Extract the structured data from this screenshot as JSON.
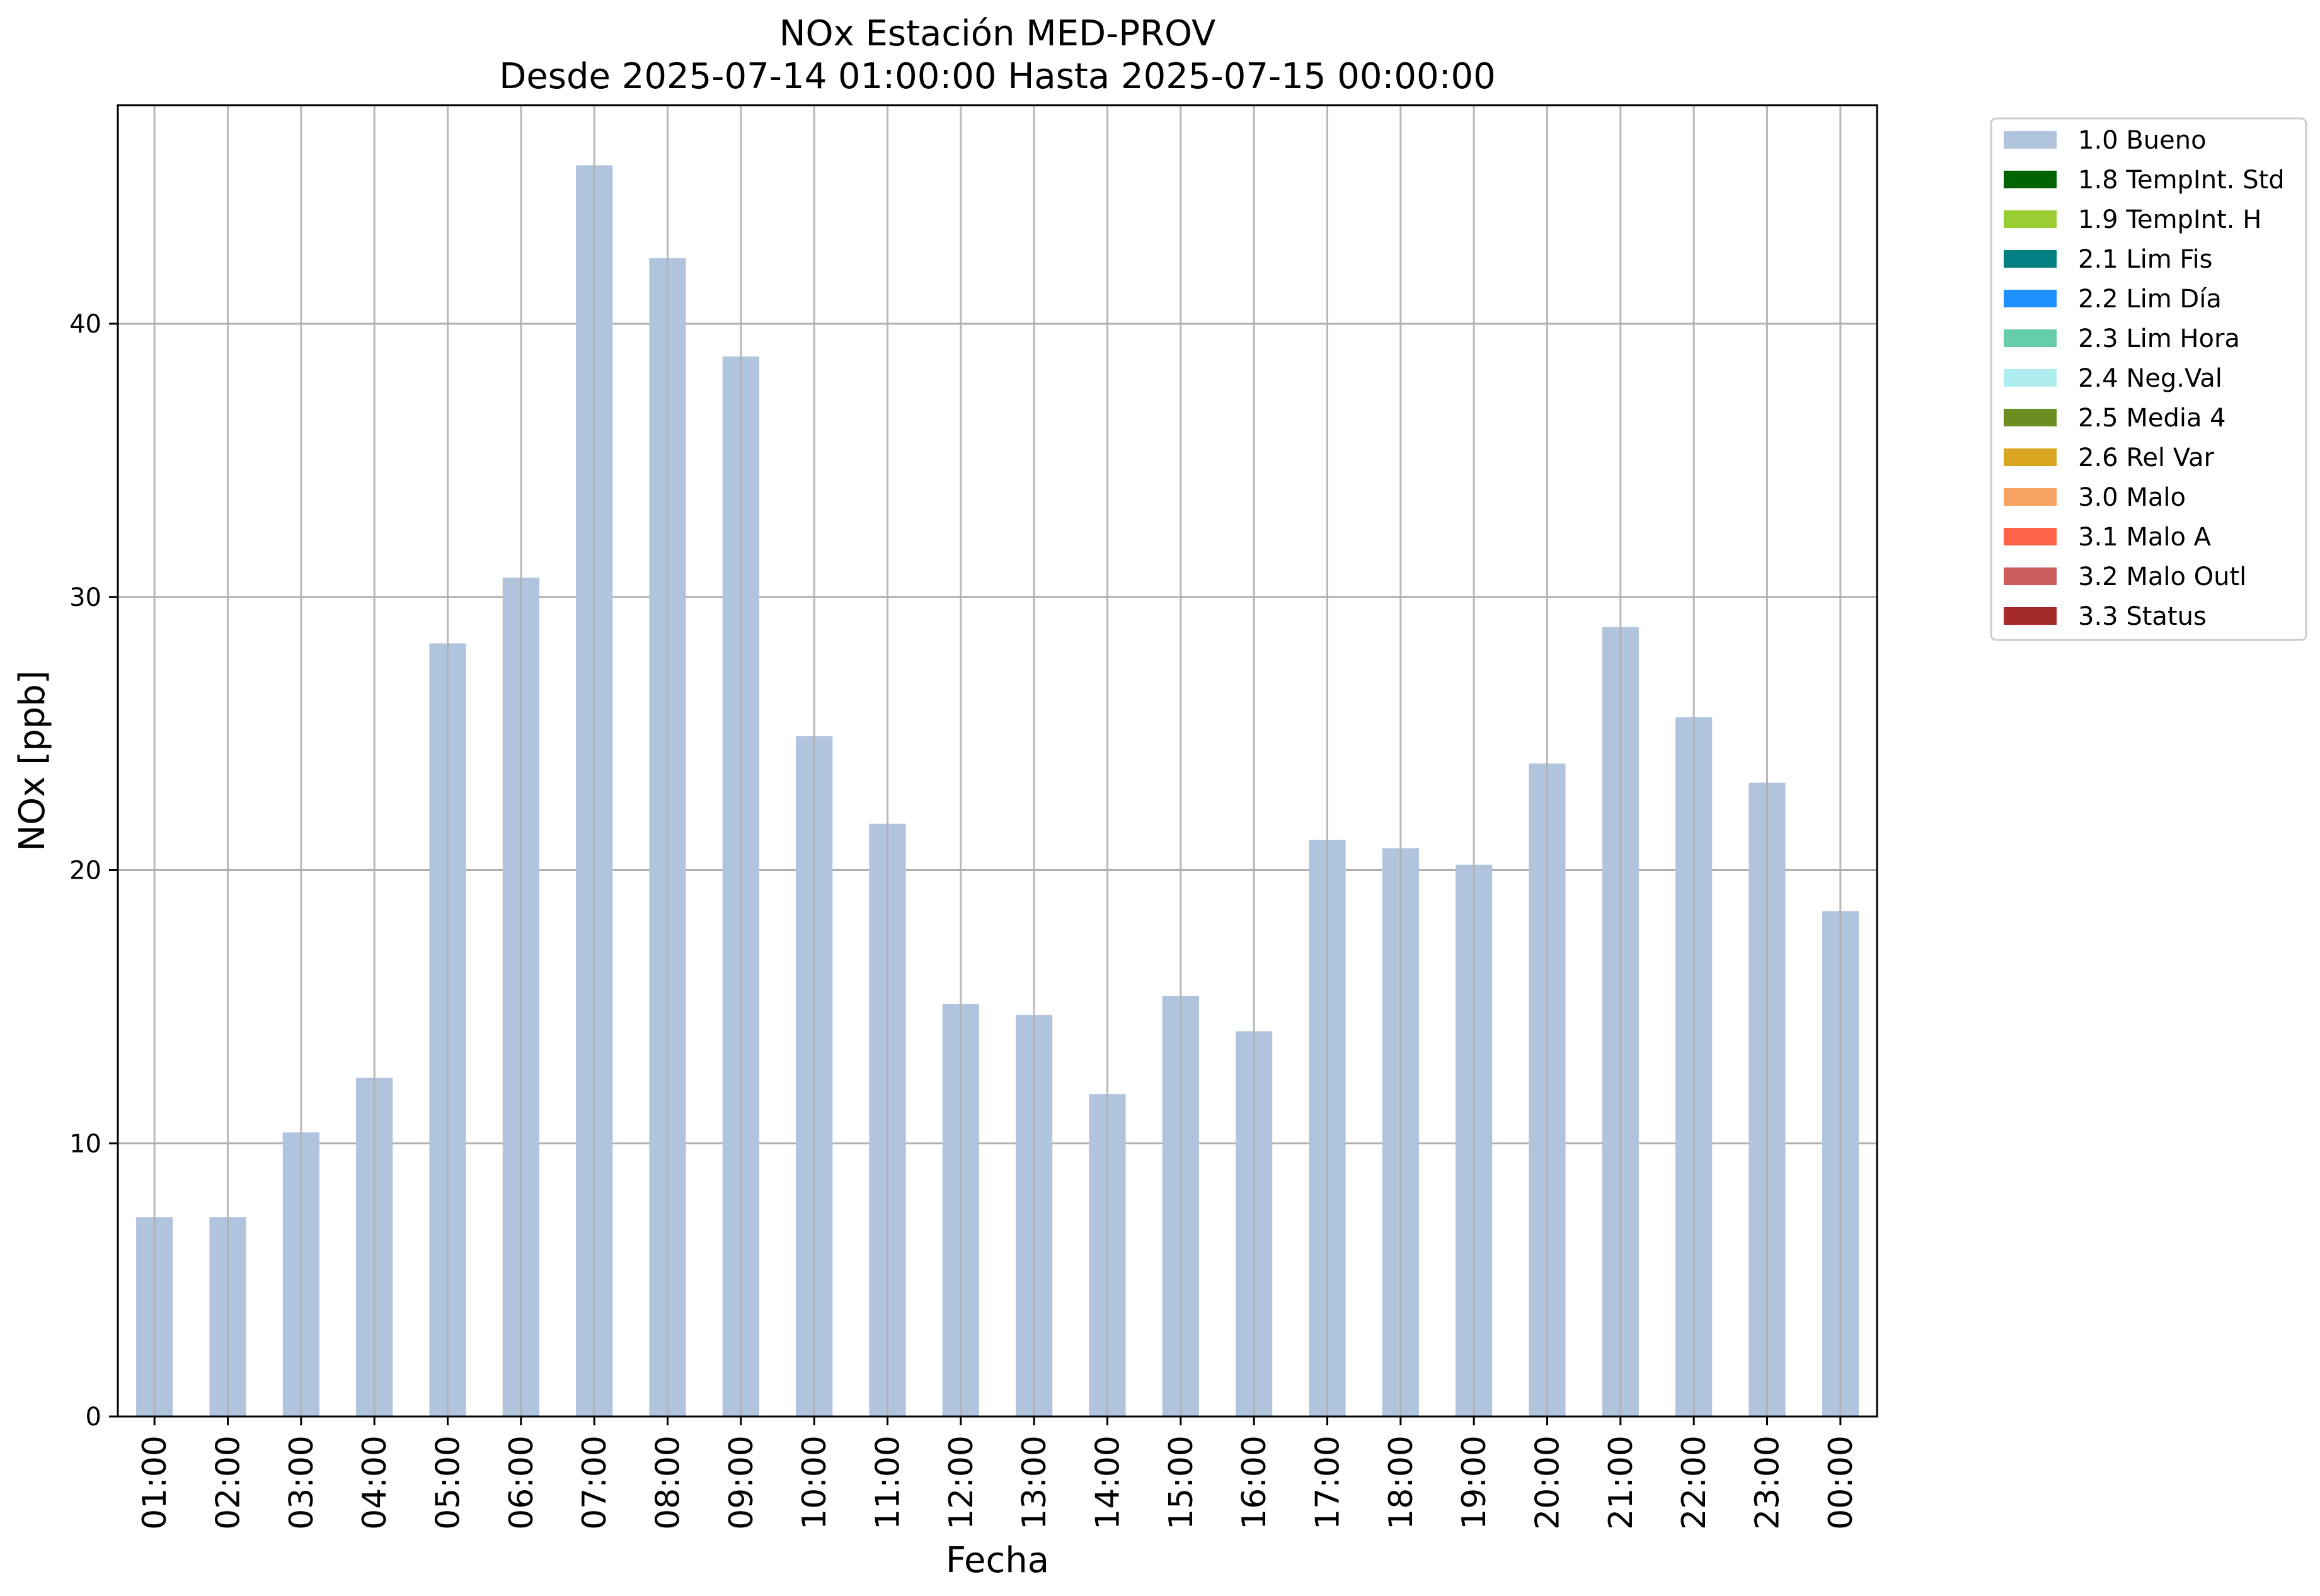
{
  "chart_data": {
    "type": "bar",
    "title": "NOx Estación MED-PROV",
    "subtitle": "Desde 2025-07-14 01:00:00 Hasta 2025-07-15 00:00:00",
    "xlabel": "Fecha",
    "ylabel": "NOx [ppb]",
    "ylim": [
      0,
      48
    ],
    "yticks": [
      0,
      10,
      20,
      30,
      40
    ],
    "grid": true,
    "legend_position": "outside-top-right",
    "categories": [
      "01:00",
      "02:00",
      "03:00",
      "04:00",
      "05:00",
      "06:00",
      "07:00",
      "08:00",
      "09:00",
      "10:00",
      "11:00",
      "12:00",
      "13:00",
      "14:00",
      "15:00",
      "16:00",
      "17:00",
      "18:00",
      "19:00",
      "20:00",
      "21:00",
      "22:00",
      "23:00",
      "00:00"
    ],
    "series": [
      {
        "name": "1.0 Bueno",
        "color": "#b0c4de",
        "values": [
          7.3,
          7.3,
          10.4,
          12.4,
          28.3,
          30.7,
          45.8,
          42.4,
          38.8,
          24.9,
          21.7,
          15.1,
          14.7,
          11.8,
          15.4,
          14.1,
          21.1,
          20.8,
          20.2,
          23.9,
          28.9,
          25.6,
          23.2,
          18.5
        ]
      }
    ],
    "legend": [
      {
        "label": "1.0 Bueno",
        "color": "#b0c4de"
      },
      {
        "label": "1.8 TempInt. Std",
        "color": "#006400"
      },
      {
        "label": "1.9 TempInt. H",
        "color": "#9acd32"
      },
      {
        "label": "2.1 Lim Fis",
        "color": "#008080"
      },
      {
        "label": "2.2 Lim Día",
        "color": "#1e90ff"
      },
      {
        "label": "2.3 Lim Hora",
        "color": "#66cdaa"
      },
      {
        "label": "2.4 Neg.Val",
        "color": "#afeeee"
      },
      {
        "label": "2.5 Media 4",
        "color": "#6b8e23"
      },
      {
        "label": "2.6 Rel Var",
        "color": "#daa520"
      },
      {
        "label": "3.0 Malo",
        "color": "#f4a460"
      },
      {
        "label": "3.1 Malo A",
        "color": "#ff6347"
      },
      {
        "label": "3.2 Malo Outl",
        "color": "#cd5c5c"
      },
      {
        "label": "3.3 Status",
        "color": "#a52a2a"
      }
    ]
  }
}
